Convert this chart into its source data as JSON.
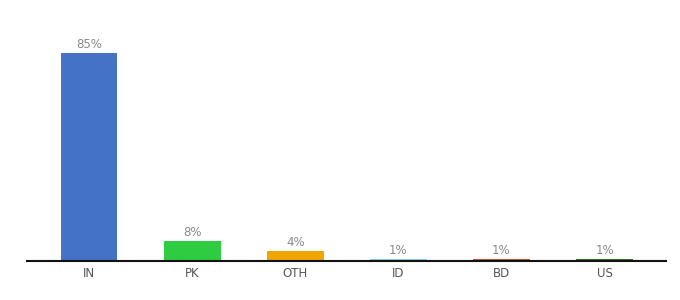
{
  "categories": [
    "IN",
    "PK",
    "OTH",
    "ID",
    "BD",
    "US"
  ],
  "values": [
    85,
    8,
    4,
    1,
    1,
    1
  ],
  "labels": [
    "85%",
    "8%",
    "4%",
    "1%",
    "1%",
    "1%"
  ],
  "bar_colors": [
    "#4472c4",
    "#2ecc40",
    "#f0a500",
    "#87ceeb",
    "#c0522a",
    "#2d7a2d"
  ],
  "background_color": "#ffffff",
  "label_color": "#888888",
  "label_fontsize": 8.5,
  "tick_fontsize": 8.5,
  "ylim": [
    0,
    97
  ],
  "bar_width": 0.55
}
